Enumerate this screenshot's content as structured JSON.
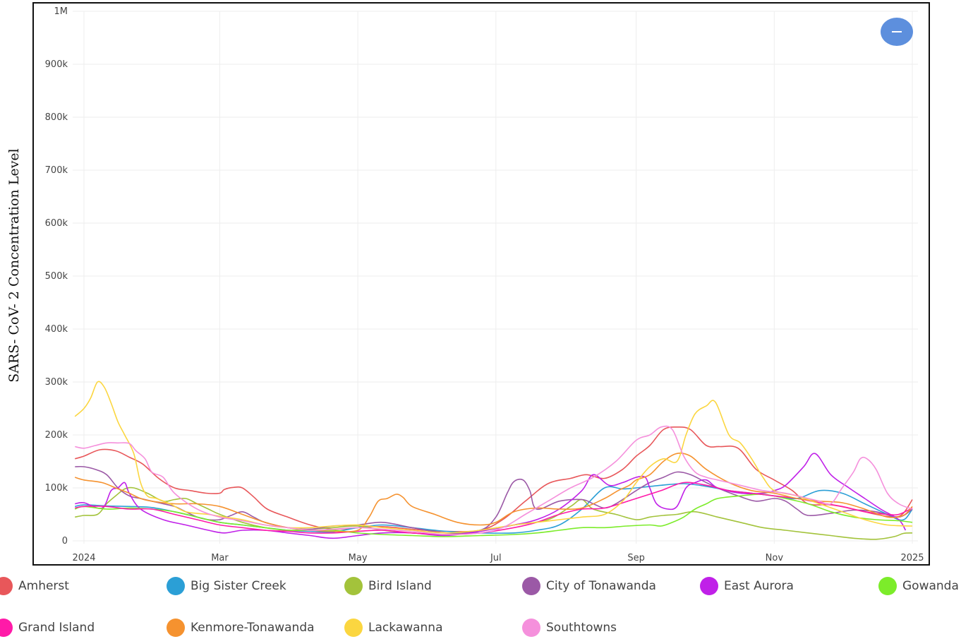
{
  "chart_data": {
    "type": "line",
    "title": "",
    "xlabel": "",
    "ylabel": "SARS- CoV- 2 Concentration Level",
    "x_unit": "days from 2024-01-01",
    "xlim": [
      0,
      366
    ],
    "ylim": [
      0,
      1000000
    ],
    "yticks": [
      0,
      100000,
      200000,
      300000,
      400000,
      500000,
      600000,
      700000,
      800000,
      900000,
      1000000
    ],
    "ytick_labels": [
      "0",
      "100k",
      "200k",
      "300k",
      "400k",
      "500k",
      "600k",
      "700k",
      "800k",
      "900k",
      "1M"
    ],
    "xticks": [
      0,
      60,
      121,
      182,
      244,
      305,
      366
    ],
    "xtick_labels": [
      "2024",
      "Mar",
      "May",
      "Jul",
      "Sep",
      "Nov",
      "2025"
    ],
    "grid": true,
    "legend_position": "bottom",
    "series": [
      {
        "name": "Amherst",
        "color": "#e8575a",
        "x": [
          -4,
          0,
          7,
          14,
          20,
          26,
          33,
          40,
          47,
          54,
          60,
          62,
          66,
          70,
          75,
          81,
          90,
          100,
          110,
          121,
          132,
          145,
          160,
          175,
          185,
          195,
          205,
          215,
          222,
          230,
          238,
          244,
          250,
          256,
          262,
          268,
          275,
          281,
          289,
          297,
          305,
          313,
          320,
          330,
          340,
          350,
          358,
          362,
          366
        ],
        "y": [
          155000,
          160000,
          172000,
          170000,
          158000,
          145000,
          118000,
          100000,
          95000,
          90000,
          90000,
          97000,
          101000,
          100000,
          83000,
          60000,
          45000,
          30000,
          22000,
          25000,
          27000,
          22000,
          18000,
          20000,
          40000,
          75000,
          108000,
          118000,
          125000,
          118000,
          135000,
          160000,
          180000,
          210000,
          215000,
          210000,
          180000,
          178000,
          175000,
          135000,
          115000,
          95000,
          70000,
          68000,
          60000,
          50000,
          45000,
          52000,
          78000
        ]
      },
      {
        "name": "Big Sister Creek",
        "color": "#2b9fd6",
        "x": [
          -4,
          0,
          10,
          20,
          30,
          40,
          50,
          60,
          70,
          80,
          90,
          100,
          110,
          121,
          132,
          145,
          160,
          175,
          190,
          200,
          210,
          220,
          230,
          238,
          244,
          255,
          265,
          275,
          285,
          295,
          305,
          315,
          325,
          335,
          345,
          355,
          360,
          363,
          366
        ],
        "y": [
          65000,
          68000,
          66000,
          65000,
          63000,
          55000,
          45000,
          35000,
          30000,
          25000,
          20000,
          18000,
          17000,
          25000,
          30000,
          25000,
          18000,
          15000,
          15000,
          20000,
          30000,
          60000,
          100000,
          98000,
          100000,
          105000,
          108000,
          103000,
          95000,
          90000,
          85000,
          80000,
          95000,
          90000,
          70000,
          50000,
          40000,
          42000,
          60000
        ]
      },
      {
        "name": "Bird Island",
        "color": "#a3c33b",
        "x": [
          -4,
          0,
          6,
          10,
          14,
          18,
          22,
          28,
          35,
          40,
          45,
          50,
          55,
          60,
          70,
          80,
          90,
          100,
          110,
          121,
          132,
          145,
          160,
          175,
          190,
          205,
          215,
          220,
          225,
          235,
          244,
          250,
          256,
          262,
          270,
          280,
          290,
          300,
          310,
          320,
          330,
          340,
          350,
          358,
          362,
          366
        ],
        "y": [
          45000,
          48000,
          50000,
          70000,
          85000,
          98000,
          100000,
          90000,
          75000,
          78000,
          80000,
          70000,
          60000,
          50000,
          35000,
          25000,
          20000,
          22000,
          25000,
          28000,
          20000,
          15000,
          12000,
          20000,
          30000,
          40000,
          65000,
          78000,
          60000,
          50000,
          40000,
          45000,
          48000,
          50000,
          55000,
          45000,
          35000,
          25000,
          20000,
          15000,
          10000,
          5000,
          3000,
          8000,
          14000,
          15000
        ]
      },
      {
        "name": "City of Tonawanda",
        "color": "#9b59a6",
        "x": [
          -4,
          0,
          5,
          10,
          15,
          20,
          25,
          30,
          35,
          40,
          45,
          50,
          55,
          60,
          65,
          70,
          75,
          80,
          90,
          100,
          110,
          121,
          132,
          145,
          160,
          175,
          182,
          187,
          190,
          194,
          197,
          200,
          210,
          220,
          225,
          230,
          235,
          244,
          250,
          256,
          262,
          268,
          275,
          281,
          289,
          297,
          305,
          310,
          315,
          320,
          330,
          340,
          350,
          360,
          366
        ],
        "y": [
          140000,
          140000,
          135000,
          125000,
          100000,
          85000,
          80000,
          75000,
          70000,
          65000,
          55000,
          45000,
          40000,
          40000,
          48000,
          55000,
          45000,
          35000,
          25000,
          22000,
          28000,
          30000,
          35000,
          25000,
          15000,
          20000,
          45000,
          90000,
          112000,
          115000,
          95000,
          60000,
          75000,
          78000,
          70000,
          62000,
          70000,
          95000,
          110000,
          120000,
          130000,
          125000,
          110000,
          98000,
          85000,
          75000,
          80000,
          75000,
          60000,
          48000,
          52000,
          58000,
          55000,
          45000,
          60000
        ]
      },
      {
        "name": "East Aurora",
        "color": "#c020e8",
        "x": [
          -4,
          0,
          8,
          12,
          15,
          18,
          20,
          25,
          35,
          45,
          55,
          62,
          70,
          80,
          90,
          100,
          110,
          121,
          132,
          145,
          160,
          175,
          190,
          200,
          210,
          220,
          225,
          232,
          238,
          244,
          248,
          250,
          253,
          258,
          262,
          266,
          270,
          275,
          280,
          290,
          300,
          305,
          310,
          318,
          323,
          330,
          338,
          345,
          352,
          360,
          363
        ],
        "y": [
          70000,
          72000,
          62000,
          95000,
          100000,
          110000,
          90000,
          60000,
          40000,
          30000,
          20000,
          15000,
          20000,
          20000,
          15000,
          10000,
          5000,
          10000,
          15000,
          15000,
          10000,
          18000,
          30000,
          40000,
          60000,
          95000,
          125000,
          105000,
          110000,
          120000,
          120000,
          100000,
          70000,
          60000,
          65000,
          100000,
          110000,
          115000,
          100000,
          90000,
          90000,
          95000,
          105000,
          140000,
          165000,
          125000,
          100000,
          80000,
          60000,
          40000,
          20000
        ]
      },
      {
        "name": "Gowanda",
        "color": "#7cec2a",
        "x": [
          -4,
          0,
          10,
          20,
          30,
          40,
          50,
          60,
          70,
          80,
          90,
          100,
          110,
          121,
          132,
          145,
          160,
          175,
          190,
          200,
          210,
          220,
          230,
          240,
          250,
          255,
          260,
          265,
          270,
          275,
          280,
          290,
          300,
          310,
          320,
          330,
          340,
          350,
          360,
          366
        ],
        "y": [
          60000,
          65000,
          60000,
          62000,
          60000,
          55000,
          45000,
          35000,
          30000,
          25000,
          20000,
          20000,
          20000,
          15000,
          12000,
          10000,
          8000,
          10000,
          12000,
          15000,
          20000,
          25000,
          25000,
          28000,
          30000,
          28000,
          35000,
          45000,
          60000,
          70000,
          80000,
          85000,
          88000,
          80000,
          70000,
          55000,
          45000,
          40000,
          38000,
          35000
        ]
      },
      {
        "name": "Grand Island",
        "color": "#ff1aa8",
        "x": [
          -4,
          0,
          10,
          20,
          30,
          40,
          50,
          60,
          70,
          80,
          90,
          100,
          110,
          121,
          132,
          145,
          160,
          175,
          190,
          200,
          210,
          220,
          230,
          244,
          255,
          265,
          275,
          285,
          295,
          305,
          315,
          325,
          335,
          345,
          355,
          360,
          366
        ],
        "y": [
          62000,
          65000,
          65000,
          60000,
          60000,
          50000,
          40000,
          30000,
          25000,
          20000,
          18000,
          15000,
          15000,
          18000,
          20000,
          15000,
          12000,
          15000,
          25000,
          35000,
          50000,
          60000,
          62000,
          80000,
          95000,
          110000,
          105000,
          95000,
          90000,
          85000,
          80000,
          72000,
          65000,
          55000,
          50000,
          50000,
          62000
        ]
      },
      {
        "name": "Kenmore-Tonawanda",
        "color": "#f5922f",
        "x": [
          -4,
          0,
          8,
          14,
          20,
          25,
          30,
          40,
          50,
          60,
          70,
          80,
          90,
          100,
          110,
          121,
          126,
          130,
          134,
          138,
          141,
          145,
          155,
          165,
          175,
          182,
          190,
          200,
          210,
          220,
          230,
          236,
          241,
          244,
          250,
          256,
          262,
          268,
          275,
          285,
          295,
          305,
          315,
          325,
          335,
          345,
          355,
          362,
          366
        ],
        "y": [
          120000,
          115000,
          110000,
          100000,
          90000,
          80000,
          75000,
          70000,
          70000,
          65000,
          50000,
          35000,
          25000,
          20000,
          18000,
          20000,
          45000,
          75000,
          80000,
          88000,
          82000,
          65000,
          50000,
          35000,
          30000,
          35000,
          55000,
          62000,
          60000,
          62000,
          80000,
          95000,
          105000,
          115000,
          125000,
          150000,
          165000,
          160000,
          135000,
          110000,
          95000,
          90000,
          80000,
          75000,
          72000,
          60000,
          45000,
          48000,
          65000
        ]
      },
      {
        "name": "Lackawanna",
        "color": "#fbd640",
        "x": [
          -4,
          0,
          3,
          6,
          9,
          12,
          15,
          18,
          22,
          25,
          28,
          32,
          38,
          45,
          55,
          62,
          70,
          80,
          90,
          100,
          110,
          121,
          132,
          145,
          160,
          175,
          190,
          200,
          210,
          220,
          230,
          238,
          244,
          250,
          256,
          262,
          266,
          270,
          275,
          279,
          285,
          290,
          295,
          300,
          305,
          315,
          325,
          335,
          345,
          355,
          366
        ],
        "y": [
          235000,
          250000,
          270000,
          300000,
          290000,
          260000,
          225000,
          200000,
          165000,
          110000,
          85000,
          80000,
          70000,
          55000,
          50000,
          45000,
          40000,
          30000,
          25000,
          25000,
          28000,
          30000,
          25000,
          20000,
          15000,
          20000,
          30000,
          35000,
          40000,
          45000,
          50000,
          75000,
          110000,
          140000,
          155000,
          150000,
          200000,
          240000,
          255000,
          262000,
          200000,
          185000,
          155000,
          120000,
          95000,
          85000,
          70000,
          55000,
          40000,
          30000,
          28000
        ]
      },
      {
        "name": "Southtowns",
        "color": "#f590dc",
        "x": [
          -4,
          0,
          5,
          10,
          15,
          20,
          23,
          27,
          30,
          35,
          40,
          50,
          60,
          70,
          80,
          90,
          100,
          110,
          121,
          132,
          145,
          160,
          175,
          185,
          195,
          205,
          215,
          225,
          235,
          244,
          250,
          255,
          260,
          265,
          270,
          275,
          280,
          290,
          300,
          310,
          320,
          325,
          330,
          335,
          340,
          343,
          346,
          350,
          355,
          360,
          366
        ],
        "y": [
          178000,
          175000,
          180000,
          185000,
          185000,
          184000,
          170000,
          155000,
          130000,
          120000,
          90000,
          60000,
          45000,
          38000,
          30000,
          25000,
          20000,
          22000,
          25000,
          22000,
          18000,
          12000,
          15000,
          25000,
          50000,
          75000,
          100000,
          120000,
          150000,
          190000,
          200000,
          215000,
          210000,
          160000,
          130000,
          120000,
          115000,
          105000,
          95000,
          90000,
          80000,
          75000,
          70000,
          100000,
          130000,
          155000,
          155000,
          135000,
          90000,
          70000,
          60000
        ]
      }
    ]
  },
  "legend": [
    {
      "label": "Amherst",
      "color": "#e8575a"
    },
    {
      "label": "Big Sister Creek",
      "color": "#2b9fd6"
    },
    {
      "label": "Bird Island",
      "color": "#a3c33b"
    },
    {
      "label": "City of Tonawanda",
      "color": "#9b59a6"
    },
    {
      "label": "East Aurora",
      "color": "#c020e8"
    },
    {
      "label": "Gowanda",
      "color": "#7cec2a"
    },
    {
      "label": "Grand Island",
      "color": "#ff1aa8"
    },
    {
      "label": "Kenmore-Tonawanda",
      "color": "#f5922f"
    },
    {
      "label": "Lackawanna",
      "color": "#fbd640"
    },
    {
      "label": "Southtowns",
      "color": "#f590dc"
    }
  ],
  "zoom_button": {
    "icon": "minus-icon",
    "color": "#5d8fdd"
  }
}
